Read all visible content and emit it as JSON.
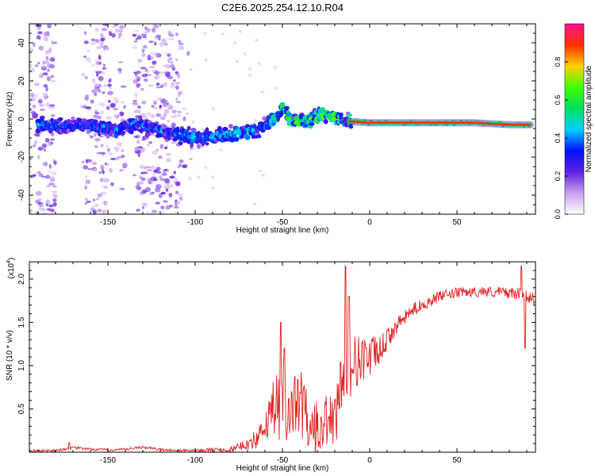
{
  "title": "C2E6.2025.254.12.10.R04",
  "chart_data": [
    {
      "type": "heatmap",
      "title": "C2E6.2025.254.12.10.R04",
      "xlabel": "Height of straight line (km)",
      "ylabel": "Frequency (Hz)",
      "xlim": [
        -195,
        95
      ],
      "ylim": [
        -50,
        50
      ],
      "xticks": [
        -150,
        -100,
        -50,
        0,
        50
      ],
      "xtick_labels": [
        "-150",
        "-100",
        "-50",
        "0",
        "50"
      ],
      "yticks": [
        -40,
        -20,
        0,
        20,
        40
      ],
      "ytick_labels": [
        "-40",
        "-20",
        "0",
        "20",
        "40"
      ],
      "colorbar": {
        "label": "Normalized spectral amplitude",
        "range": [
          0,
          1
        ],
        "ticks": [
          0.0,
          0.2,
          0.4,
          0.6,
          0.8
        ],
        "tick_labels": [
          "0.0",
          "0.2",
          "0.4",
          "0.6",
          "0.8"
        ],
        "stops": [
          "#ffffff",
          "#c8a0f0",
          "#6020e0",
          "#0010ff",
          "#00d0ff",
          "#00e060",
          "#40ff00",
          "#ffd000",
          "#ff3000",
          "#ff1090"
        ]
      },
      "ridge_points": [
        [
          -185,
          -3
        ],
        [
          -175,
          -4
        ],
        [
          -165,
          -3
        ],
        [
          -155,
          -4
        ],
        [
          -145,
          -6
        ],
        [
          -135,
          -2
        ],
        [
          -125,
          -5
        ],
        [
          -110,
          -8
        ],
        [
          -100,
          -10
        ],
        [
          -90,
          -9
        ],
        [
          -80,
          -8
        ],
        [
          -70,
          -7
        ],
        [
          -60,
          -4
        ],
        [
          -52,
          2
        ],
        [
          -50,
          7
        ],
        [
          -45,
          -2
        ],
        [
          -35,
          0
        ],
        [
          -25,
          2
        ],
        [
          -15,
          -1
        ],
        [
          0,
          -2
        ],
        [
          20,
          -2
        ],
        [
          40,
          -2
        ],
        [
          60,
          -2
        ],
        [
          80,
          -3
        ],
        [
          90,
          -3
        ]
      ]
    },
    {
      "type": "line",
      "xlabel": "Height of straight line (km)",
      "ylabel": "SNR (10 * v/v)",
      "scale_label": "(x10",
      "scale_exp": "4",
      "scale_close": ")",
      "xlim": [
        -195,
        95
      ],
      "ylim": [
        0,
        22000
      ],
      "xticks": [
        -150,
        -100,
        -50,
        0,
        50
      ],
      "xtick_labels": [
        "-150",
        "-100",
        "-50",
        "0",
        "50"
      ],
      "yticks": [
        5000,
        10000,
        15000,
        20000
      ],
      "ytick_labels": [
        "0.5",
        "1.0",
        "1.5",
        "2.0"
      ],
      "color": "#e02020",
      "envelope": {
        "x": [
          -195,
          -180,
          -170,
          -160,
          -150,
          -140,
          -130,
          -120,
          -110,
          -100,
          -90,
          -80,
          -75,
          -70,
          -65,
          -60,
          -55,
          -50,
          -45,
          -40,
          -35,
          -30,
          -25,
          -20,
          -15,
          -10,
          -5,
          0,
          5,
          10,
          15,
          20,
          25,
          30,
          35,
          40,
          45,
          50,
          55,
          60,
          65,
          70,
          75,
          80,
          85,
          90,
          95
        ],
        "y": [
          150,
          200,
          500,
          350,
          250,
          300,
          600,
          300,
          200,
          200,
          250,
          300,
          600,
          1000,
          1500,
          2500,
          5000,
          7000,
          5000,
          6000,
          4000,
          3000,
          3500,
          5000,
          9000,
          10000,
          11000,
          11000,
          11500,
          13000,
          14500,
          15500,
          16500,
          17000,
          17500,
          18000,
          18200,
          18400,
          18500,
          18500,
          18600,
          18500,
          18500,
          18400,
          18300,
          18000,
          17800
        ]
      },
      "noise": {
        "x": [
          -195,
          -100,
          -75,
          -60,
          -55,
          -45,
          -35,
          -20,
          -10,
          0,
          10,
          20,
          40,
          60,
          95
        ],
        "y": [
          150,
          150,
          400,
          1500,
          4000,
          3500,
          4000,
          3000,
          3500,
          2500,
          1200,
          800,
          600,
          600,
          700
        ]
      },
      "spikes": [
        {
          "x": -172,
          "y": 1100
        },
        {
          "x": -51,
          "y": 15000
        },
        {
          "x": -49,
          "y": 12000
        },
        {
          "x": -14,
          "y": 21500
        },
        {
          "x": -12,
          "y": 18000
        },
        {
          "x": 87,
          "y": 21500
        },
        {
          "x": 89,
          "y": 12000
        }
      ]
    }
  ]
}
